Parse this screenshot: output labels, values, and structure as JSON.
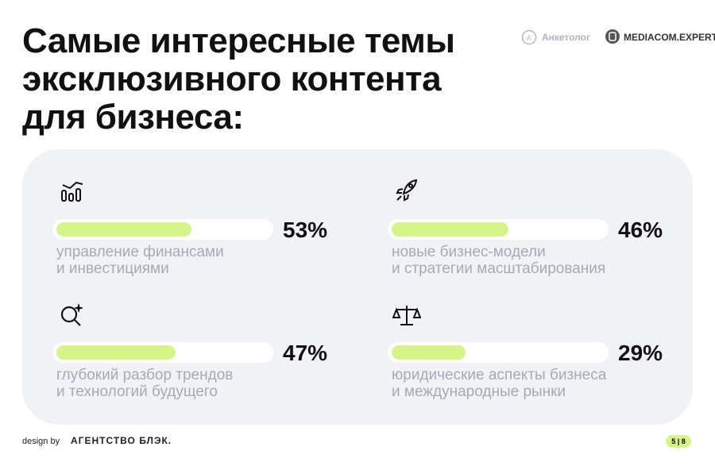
{
  "chart_data": {
    "type": "progress",
    "title": "Самые интересные темы\nэксклюзивного контента\nдля бизнеса:",
    "categories": [
      "управление финансами\nи инвестициями",
      "новые бизнес-модели\nи стратегии масштабирования",
      "глубокий разбор трендов\nи технологий будущего",
      "юридические аспекты бизнеса\nи международные рынки"
    ],
    "values": [
      53,
      46,
      47,
      29
    ],
    "value_labels": [
      "53%",
      "46%",
      "47%",
      "29%"
    ],
    "color": "#d5f58b"
  },
  "logos": [
    "Анкетолог",
    "MEDIACOM.EXPERT"
  ],
  "footer": {
    "credit": "design by",
    "agency": "АГЕНТСТВО БЛЭК.",
    "page": "5 | 8"
  }
}
